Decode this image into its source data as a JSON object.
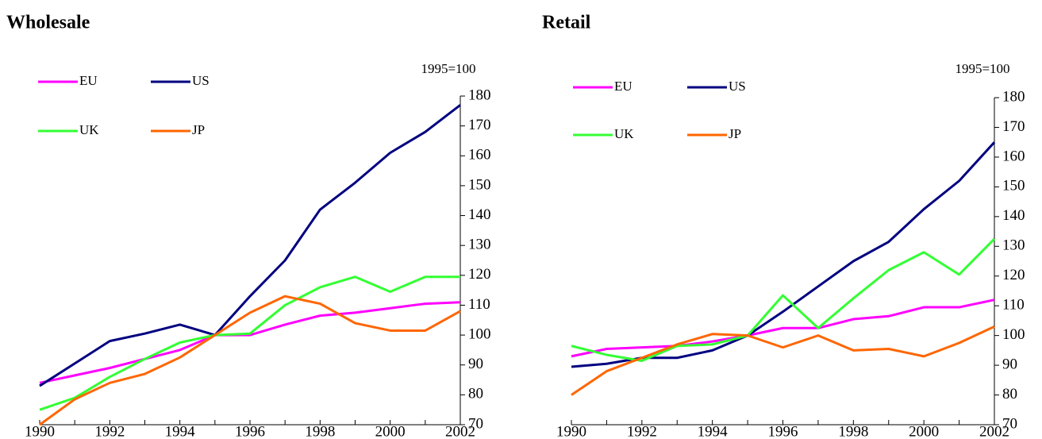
{
  "chart_data": [
    {
      "type": "line",
      "title": "Wholesale",
      "y_unit": "1995=100",
      "x": [
        1990,
        1991,
        1992,
        1993,
        1994,
        1995,
        1996,
        1997,
        1998,
        1999,
        2000,
        2001,
        2002
      ],
      "xlim": [
        1990,
        2002
      ],
      "xticks": [
        1990,
        1992,
        1994,
        1996,
        1998,
        2000,
        2002
      ],
      "ylim": [
        70,
        180
      ],
      "yticks": [
        70,
        80,
        90,
        100,
        110,
        120,
        130,
        140,
        150,
        160,
        170,
        180
      ],
      "series": [
        {
          "name": "EU",
          "color": "#ff00ff",
          "values": [
            84,
            86.5,
            89,
            92,
            95,
            100,
            100,
            103.5,
            106.5,
            107.5,
            109,
            110.5,
            111
          ]
        },
        {
          "name": "US",
          "color": "#000080",
          "values": [
            83,
            90.5,
            98,
            100.5,
            103.5,
            100,
            113,
            125,
            142,
            151,
            161,
            168,
            177
          ]
        },
        {
          "name": "UK",
          "color": "#33ff33",
          "values": [
            75,
            79,
            86,
            92,
            97.5,
            100,
            100.5,
            110,
            116,
            119.5,
            114.5,
            119.5,
            119.5
          ]
        },
        {
          "name": "JP",
          "color": "#ff6600",
          "values": [
            70,
            78.5,
            84,
            87,
            92.5,
            100,
            107.5,
            113,
            110.5,
            104,
            101.5,
            101.5,
            108
          ]
        }
      ]
    },
    {
      "type": "line",
      "title": "Retail",
      "y_unit": "1995=100",
      "x": [
        1990,
        1991,
        1992,
        1993,
        1994,
        1995,
        1996,
        1997,
        1998,
        1999,
        2000,
        2001,
        2002
      ],
      "xlim": [
        1990,
        2002
      ],
      "xticks": [
        1990,
        1992,
        1994,
        1996,
        1998,
        2000,
        2002
      ],
      "ylim": [
        70,
        180
      ],
      "yticks": [
        70,
        80,
        90,
        100,
        110,
        120,
        130,
        140,
        150,
        160,
        170,
        180
      ],
      "series": [
        {
          "name": "EU",
          "color": "#ff00ff",
          "values": [
            93,
            95.5,
            96,
            96.5,
            98,
            100,
            102.5,
            102.5,
            105.5,
            106.5,
            109.5,
            109.5,
            112
          ]
        },
        {
          "name": "US",
          "color": "#000080",
          "values": [
            89.5,
            90.5,
            92.5,
            92.5,
            95,
            100,
            108,
            116.5,
            125,
            131.5,
            142.5,
            152,
            165
          ]
        },
        {
          "name": "UK",
          "color": "#33ff33",
          "values": [
            96.5,
            93.5,
            91.5,
            96.5,
            97,
            100,
            113.5,
            102.5,
            112.5,
            122,
            128,
            120.5,
            132.5
          ]
        },
        {
          "name": "JP",
          "color": "#ff6600",
          "values": [
            80,
            88,
            92.5,
            97,
            100.5,
            100,
            96,
            100,
            95,
            95.5,
            93,
            97.5,
            103
          ]
        }
      ]
    }
  ]
}
